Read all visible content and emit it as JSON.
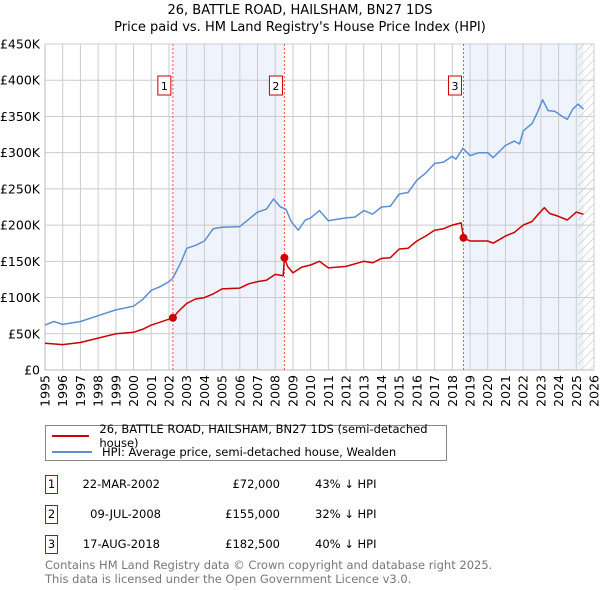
{
  "chart_data": {
    "type": "line",
    "title": "26, BATTLE ROAD, HAILSHAM, BN27 1DS",
    "subtitle": "Price paid vs. HM Land Registry's House Price Index (HPI)",
    "xlim": [
      1995,
      2026
    ],
    "ylim": [
      0,
      450000
    ],
    "x_ticks": [
      "1995",
      "1996",
      "1997",
      "1998",
      "1999",
      "2000",
      "2001",
      "2002",
      "2003",
      "2004",
      "2005",
      "2006",
      "2007",
      "2008",
      "2009",
      "2010",
      "2011",
      "2012",
      "2013",
      "2014",
      "2015",
      "2016",
      "2017",
      "2018",
      "2019",
      "2020",
      "2021",
      "2022",
      "2023",
      "2024",
      "2025",
      "2026"
    ],
    "y_ticks": [
      {
        "v": 0,
        "label": "£0"
      },
      {
        "v": 50000,
        "label": "£50K"
      },
      {
        "v": 100000,
        "label": "£100K"
      },
      {
        "v": 150000,
        "label": "£150K"
      },
      {
        "v": 200000,
        "label": "£200K"
      },
      {
        "v": 250000,
        "label": "£250K"
      },
      {
        "v": 300000,
        "label": "£300K"
      },
      {
        "v": 350000,
        "label": "£350K"
      },
      {
        "v": 400000,
        "label": "£400K"
      },
      {
        "v": 450000,
        "label": "£450K"
      }
    ],
    "grid": true,
    "shaded_ranges": [
      [
        2002.22,
        2008.52
      ],
      [
        2018.63,
        2025.4
      ]
    ],
    "hatched_range": [
      2025.1,
      2026
    ],
    "series": [
      {
        "name": "26, BATTLE ROAD, HAILSHAM, BN27 1DS (semi-detached house)",
        "color": "#cc0000",
        "x": [
          1995,
          1996,
          1997,
          1998,
          1999,
          2000,
          2000.5,
          2001,
          2001.5,
          2002.22,
          2002.5,
          2003,
          2003.5,
          2004,
          2004.5,
          2005,
          2006,
          2006.5,
          2007,
          2007.5,
          2008,
          2008.45,
          2008.52,
          2008.7,
          2009,
          2009.5,
          2010,
          2010.5,
          2011,
          2012,
          2013,
          2013.5,
          2014,
          2014.5,
          2015,
          2015.5,
          2016,
          2016.5,
          2017,
          2017.5,
          2018,
          2018.5,
          2018.63,
          2019,
          2020,
          2020.3,
          2020.8,
          2021,
          2021.5,
          2022,
          2022.5,
          2023,
          2023.2,
          2023.5,
          2024,
          2024.5,
          2025,
          2025.4
        ],
        "values": [
          37000,
          35000,
          38000,
          44000,
          50000,
          52000,
          56000,
          62000,
          66000,
          72000,
          80000,
          92000,
          98000,
          100000,
          105000,
          112000,
          113000,
          119000,
          122000,
          124000,
          132000,
          130000,
          155000,
          143000,
          134000,
          142000,
          145000,
          150000,
          141000,
          143000,
          150000,
          148000,
          154000,
          155000,
          167000,
          168000,
          178000,
          185000,
          193000,
          195000,
          200000,
          203000,
          182500,
          178000,
          178000,
          175000,
          182000,
          185000,
          190000,
          200000,
          205000,
          219000,
          224000,
          216000,
          212000,
          207000,
          218000,
          215000
        ]
      },
      {
        "name": "HPI: Average price, semi-detached house, Wealden",
        "color": "#5b8fd4",
        "x": [
          1995,
          1995.5,
          1996,
          1997,
          1998,
          1999,
          2000,
          2000.5,
          2001,
          2001.5,
          2002,
          2002.22,
          2002.7,
          2003,
          2003.5,
          2004,
          2004.5,
          2005,
          2006,
          2006.5,
          2007,
          2007.5,
          2007.9,
          2008.3,
          2008.6,
          2008.9,
          2009.3,
          2009.7,
          2010,
          2010.5,
          2011,
          2011.5,
          2012,
          2012.5,
          2013,
          2013.5,
          2014,
          2014.5,
          2015,
          2015.5,
          2016,
          2016.5,
          2017,
          2017.5,
          2018,
          2018.2,
          2018.6,
          2019,
          2019.5,
          2020,
          2020.3,
          2020.8,
          2021,
          2021.5,
          2021.8,
          2022,
          2022.5,
          2022.8,
          2023.1,
          2023.4,
          2023.8,
          2024.2,
          2024.5,
          2024.8,
          2025.1,
          2025.4
        ],
        "values": [
          62000,
          67000,
          63000,
          67000,
          75000,
          83000,
          88000,
          97000,
          110000,
          115000,
          122000,
          127000,
          150000,
          168000,
          172000,
          178000,
          195000,
          197000,
          198000,
          208000,
          218000,
          222000,
          236000,
          225000,
          222000,
          205000,
          193000,
          207000,
          210000,
          220000,
          206000,
          208000,
          210000,
          211000,
          220000,
          215000,
          225000,
          226000,
          243000,
          245000,
          262000,
          272000,
          285000,
          287000,
          295000,
          291000,
          306000,
          296000,
          300000,
          300000,
          293000,
          305000,
          310000,
          316000,
          312000,
          330000,
          340000,
          355000,
          373000,
          358000,
          357000,
          350000,
          346000,
          360000,
          367000,
          360000
        ]
      }
    ],
    "sales": [
      {
        "n": "1",
        "x": 2002.22,
        "value": 72000
      },
      {
        "n": "2",
        "x": 2008.52,
        "value": 155000
      },
      {
        "n": "3",
        "x": 2018.63,
        "value": 182500
      }
    ]
  },
  "title": "26, BATTLE ROAD, HAILSHAM, BN27 1DS",
  "subtitle": "Price paid vs. HM Land Registry's House Price Index (HPI)",
  "legend": {
    "property": "26, BATTLE ROAD, HAILSHAM, BN27 1DS (semi-detached house)",
    "hpi": "HPI: Average price, semi-detached house, Wealden"
  },
  "transactions": [
    {
      "n": "1",
      "date": "22-MAR-2002",
      "price": "£72,000",
      "hpi": "43% ↓ HPI"
    },
    {
      "n": "2",
      "date": "09-JUL-2008",
      "price": "£155,000",
      "hpi": "32% ↓ HPI"
    },
    {
      "n": "3",
      "date": "17-AUG-2018",
      "price": "£182,500",
      "hpi": "40% ↓ HPI"
    }
  ],
  "footer": {
    "line1": "Contains HM Land Registry data © Crown copyright and database right 2025.",
    "line2": "This data is licensed under the Open Government Licence v3.0."
  }
}
